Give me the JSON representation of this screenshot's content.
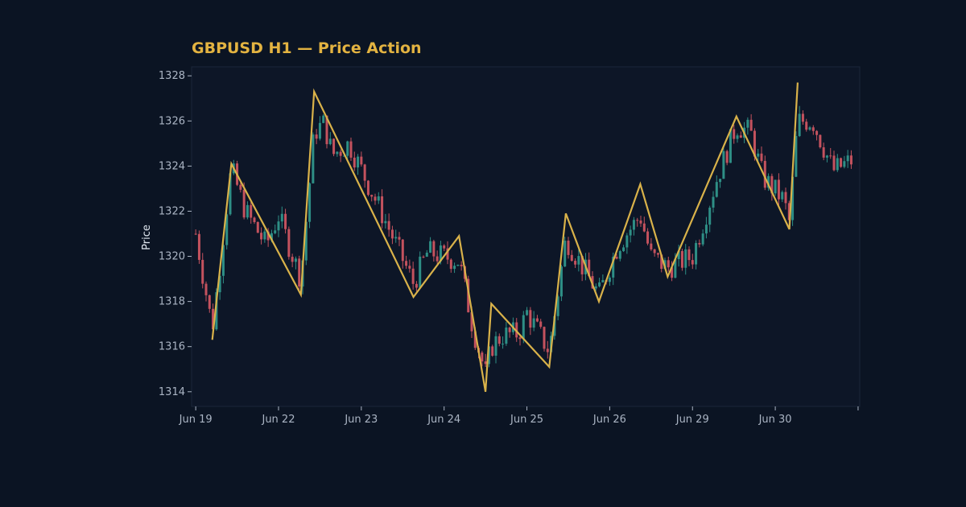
{
  "colors": {
    "background": "#0b1423",
    "plot_background": "#0d1627",
    "plot_border": "#1b2638",
    "title": "#e3b341",
    "tick_label": "#aab4c3",
    "axis_title": "#dfe6ee",
    "up_candle": "#2e8f86",
    "down_candle": "#c4525e",
    "zigzag": "#d9b24a"
  },
  "chart_data": {
    "type": "candlestick",
    "title": "GBPUSD H1 — Price Action",
    "ylabel": "Price",
    "xlabel": "",
    "ylim": [
      1313.35,
      1328.4
    ],
    "yticks": [
      1314,
      1316,
      1318,
      1320,
      1322,
      1324,
      1326,
      1328
    ],
    "xlim": [
      -0.05,
      8.02
    ],
    "xticks": [
      {
        "pos": 0,
        "label": "Jun 19"
      },
      {
        "pos": 1,
        "label": "Jun 22"
      },
      {
        "pos": 2,
        "label": "Jun 23"
      },
      {
        "pos": 3,
        "label": "Jun 24"
      },
      {
        "pos": 4,
        "label": "Jun 25"
      },
      {
        "pos": 5,
        "label": "Jun 26"
      },
      {
        "pos": 6,
        "label": "Jun 29"
      },
      {
        "pos": 7,
        "label": "Jun 30"
      },
      {
        "pos": 8,
        "label": ""
      }
    ],
    "grid": false,
    "candle_interval": "1 hour",
    "candle_step": 0.04167,
    "candle_start": 0.0,
    "zigzag_points": [
      {
        "x": 0.2,
        "y": 1316.3
      },
      {
        "x": 0.43,
        "y": 1324.1
      },
      {
        "x": 1.27,
        "y": 1318.3
      },
      {
        "x": 1.43,
        "y": 1327.3
      },
      {
        "x": 2.63,
        "y": 1318.2
      },
      {
        "x": 3.18,
        "y": 1320.9
      },
      {
        "x": 3.5,
        "y": 1314.0
      },
      {
        "x": 3.57,
        "y": 1317.9
      },
      {
        "x": 4.27,
        "y": 1315.1
      },
      {
        "x": 4.47,
        "y": 1321.9
      },
      {
        "x": 4.87,
        "y": 1318.0
      },
      {
        "x": 5.37,
        "y": 1323.2
      },
      {
        "x": 5.7,
        "y": 1319.1
      },
      {
        "x": 6.53,
        "y": 1326.2
      },
      {
        "x": 7.17,
        "y": 1321.2
      },
      {
        "x": 7.27,
        "y": 1327.7
      }
    ],
    "anchors": [
      [
        0.0,
        1321.0
      ],
      [
        0.2,
        1316.8
      ],
      [
        0.43,
        1323.9
      ],
      [
        0.6,
        1322.0
      ],
      [
        0.85,
        1320.5
      ],
      [
        1.0,
        1321.8
      ],
      [
        1.27,
        1319.0
      ],
      [
        1.43,
        1325.5
      ],
      [
        1.55,
        1325.9
      ],
      [
        1.65,
        1324.5
      ],
      [
        1.85,
        1325.0
      ],
      [
        2.3,
        1321.5
      ],
      [
        2.63,
        1318.8
      ],
      [
        2.8,
        1320.2
      ],
      [
        3.18,
        1319.8
      ],
      [
        3.35,
        1316.8
      ],
      [
        3.5,
        1314.8
      ],
      [
        3.57,
        1316.0
      ],
      [
        3.7,
        1316.5
      ],
      [
        3.9,
        1316.6
      ],
      [
        4.0,
        1317.5
      ],
      [
        4.27,
        1315.8
      ],
      [
        4.47,
        1320.8
      ],
      [
        4.87,
        1318.3
      ],
      [
        5.1,
        1320.5
      ],
      [
        5.37,
        1321.8
      ],
      [
        5.5,
        1320.0
      ],
      [
        5.7,
        1319.5
      ],
      [
        6.0,
        1320.0
      ],
      [
        6.3,
        1323.5
      ],
      [
        6.53,
        1325.8
      ],
      [
        6.7,
        1325.5
      ],
      [
        6.85,
        1323.5
      ],
      [
        7.1,
        1322.5
      ],
      [
        7.17,
        1321.5
      ],
      [
        7.27,
        1326.0
      ],
      [
        7.45,
        1326.0
      ],
      [
        7.7,
        1323.8
      ],
      [
        7.95,
        1324.3
      ]
    ],
    "noise_scale": 0.55,
    "wick_scale": 0.35
  }
}
